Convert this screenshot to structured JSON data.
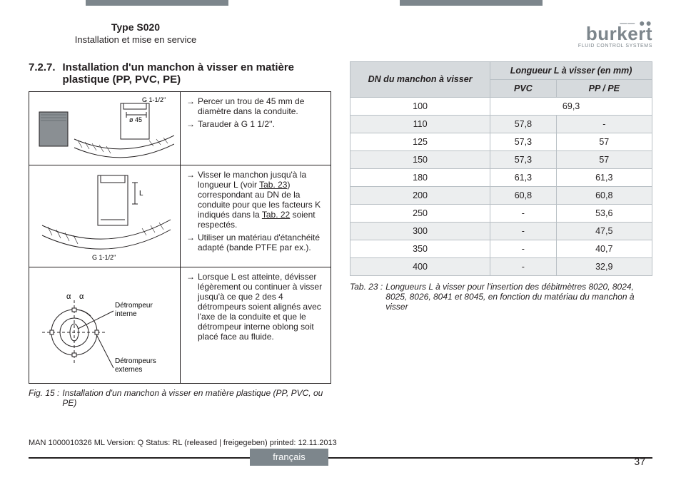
{
  "header": {
    "type_line": "Type S020",
    "subtitle": "Installation et mise en service"
  },
  "brand": {
    "name": "burkert",
    "tagline": "FLUID CONTROL SYSTEMS"
  },
  "section": {
    "number": "7.2.7.",
    "title": "Installation d'un manchon à visser en matière plastique (PP, PVC, PE)"
  },
  "left_table": {
    "rows": [
      {
        "diagram_labels": {
          "thread": "G 1-1/2''",
          "diameter": "ø 45"
        },
        "steps": [
          "Percer un trou de 45 mm de diamètre dans la conduite.",
          "Tarauder à G 1 1/2''."
        ]
      },
      {
        "diagram_labels": {
          "thread": "G 1-1/2''",
          "length": "L"
        },
        "steps": [
          "Visser le manchon jusqu'à la longueur L (voir Tab. 23) correspondant au DN de la conduite pour que les facteurs K indiqués dans la Tab. 22 soient respectés.",
          "Utiliser un matériau d'étanchéité adapté (bande PTFE par ex.)."
        ],
        "link1": "Tab. 23",
        "link2": "Tab. 22"
      },
      {
        "diagram_labels": {
          "alpha": "α",
          "internal": "Détrompeur interne",
          "external": "Détrompeurs externes"
        },
        "steps": [
          "Lorsque L est atteinte, dévisser légèrement ou continuer à visser jusqu'à ce que 2 des 4 détrompeurs soient alignés avec l'axe de la conduite et que le détrompeur interne oblong soit placé face au fluide."
        ]
      }
    ]
  },
  "fig_caption": {
    "label": "Fig. 15 :",
    "text": "Installation d'un manchon à visser en matière plastique (PP, PVC, ou PE)"
  },
  "right_table": {
    "header_main": "DN du manchon à visser",
    "header_span": "Longueur L à visser (en mm)",
    "sub1": "PVC",
    "sub2": "PP / PE",
    "rows": [
      {
        "dn": "100",
        "pvc": "69,3",
        "pp": "69,3",
        "merged": true
      },
      {
        "dn": "110",
        "pvc": "57,8",
        "pp": "-"
      },
      {
        "dn": "125",
        "pvc": "57,3",
        "pp": "57"
      },
      {
        "dn": "150",
        "pvc": "57,3",
        "pp": "57"
      },
      {
        "dn": "180",
        "pvc": "61,3",
        "pp": "61,3"
      },
      {
        "dn": "200",
        "pvc": "60,8",
        "pp": "60,8"
      },
      {
        "dn": "250",
        "pvc": "-",
        "pp": "53,6"
      },
      {
        "dn": "300",
        "pvc": "-",
        "pp": "47,5"
      },
      {
        "dn": "350",
        "pvc": "-",
        "pp": "40,7"
      },
      {
        "dn": "400",
        "pvc": "-",
        "pp": "32,9"
      }
    ],
    "alt_rows": [
      1,
      3,
      5,
      7,
      9
    ],
    "colors": {
      "header_bg": "#d6dadd",
      "alt_bg": "#eceeef",
      "border": "#b9c0c5"
    }
  },
  "tab_caption": {
    "label": "Tab. 23 :",
    "text": "Longueurs L à visser pour l'insertion des débitmètres 8020, 8024, 8025, 8026, 8041 et 8045, en fonction du matériau du manchon à visser"
  },
  "footer": {
    "meta": "MAN  1000010326  ML   Version: Q Status: RL (released | freigegeben)  printed: 12.11.2013",
    "language": "français",
    "page": "37"
  },
  "arrow_glyph": "→"
}
